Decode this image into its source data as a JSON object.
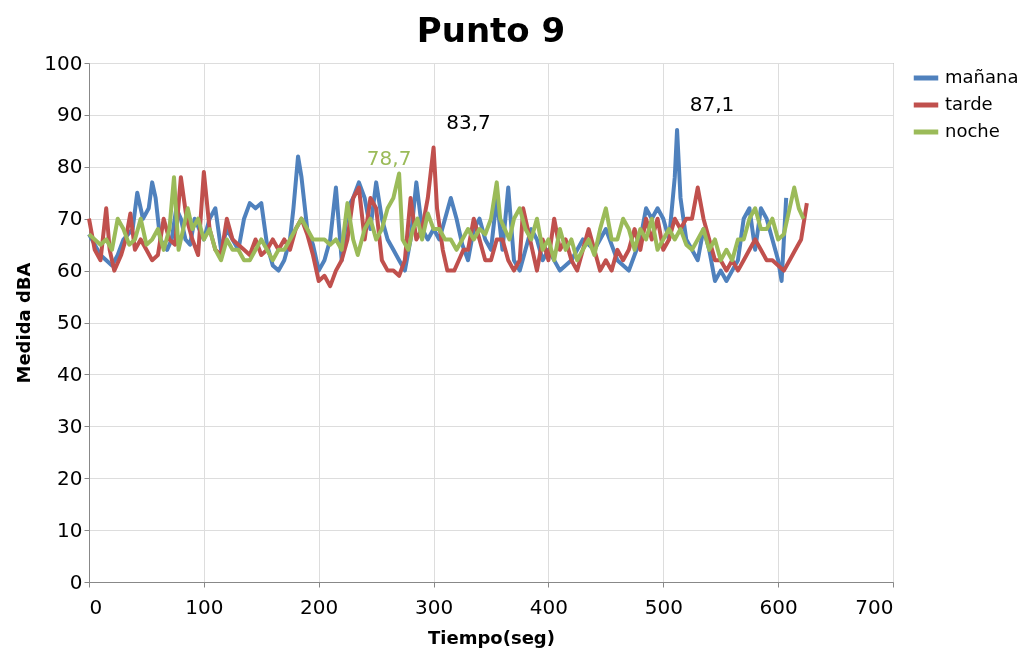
{
  "chart_data": {
    "type": "line",
    "title": "Punto 9",
    "xlabel": "Tiempo(seg)",
    "ylabel": "Medida dBA",
    "xlim": [
      0,
      700
    ],
    "xticks": [
      0,
      100,
      200,
      300,
      400,
      500,
      600,
      700
    ],
    "ylim": [
      0,
      100
    ],
    "yticks": [
      0,
      10,
      20,
      30,
      40,
      50,
      60,
      70,
      80,
      90,
      100
    ],
    "grid": true,
    "legend": "right",
    "marker": "none",
    "line_style": "solid",
    "annotations": [
      {
        "text": "78,7",
        "x": 270,
        "y": 78.7
      },
      {
        "text": "83,7",
        "x": 300,
        "y": 83.7
      },
      {
        "text": "87,1",
        "x": 512,
        "y": 87.1
      }
    ],
    "series": [
      {
        "name": "mañana",
        "color": "#4f81bd",
        "x": [
          0,
          5,
          10,
          15,
          20,
          25,
          30,
          38,
          42,
          47,
          52,
          55,
          58,
          62,
          68,
          72,
          76,
          80,
          84,
          88,
          92,
          96,
          100,
          105,
          110,
          115,
          120,
          125,
          130,
          135,
          140,
          145,
          150,
          155,
          160,
          165,
          170,
          175,
          178,
          182,
          185,
          190,
          195,
          200,
          205,
          210,
          215,
          220,
          225,
          230,
          235,
          240,
          245,
          250,
          255,
          260,
          265,
          270,
          275,
          280,
          285,
          290,
          295,
          300,
          305,
          310,
          315,
          320,
          325,
          330,
          335,
          340,
          345,
          350,
          355,
          360,
          365,
          370,
          375,
          380,
          385,
          390,
          395,
          400,
          410,
          420,
          430,
          440,
          450,
          460,
          470,
          480,
          485,
          490,
          495,
          500,
          505,
          510,
          512,
          515,
          520,
          525,
          530,
          535,
          540,
          545,
          550,
          555,
          560,
          565,
          570,
          575,
          580,
          585,
          590,
          595,
          600,
          603,
          607
        ],
        "values": [
          67,
          65,
          63,
          62,
          61,
          63,
          66,
          68,
          75,
          70,
          72,
          77,
          74,
          66,
          64,
          66,
          72,
          70,
          66,
          65,
          70,
          68,
          66,
          70,
          72,
          64,
          68,
          66,
          64,
          70,
          73,
          72,
          73,
          65,
          61,
          60,
          62,
          66,
          72,
          82,
          78,
          68,
          65,
          60,
          62,
          66,
          76,
          62,
          72,
          74,
          77,
          74,
          68,
          77,
          70,
          66,
          64,
          62,
          60,
          66,
          77,
          68,
          66,
          68,
          66,
          70,
          74,
          70,
          65,
          62,
          68,
          70,
          66,
          64,
          74,
          64,
          76,
          62,
          60,
          64,
          68,
          66,
          62,
          64,
          60,
          62,
          66,
          64,
          68,
          62,
          60,
          66,
          72,
          70,
          72,
          70,
          66,
          78,
          87.1,
          74,
          66,
          64,
          62,
          68,
          64,
          58,
          60,
          58,
          60,
          62,
          70,
          72,
          64,
          72,
          70,
          66,
          62,
          58,
          74
        ]
      },
      {
        "name": "tarde",
        "color": "#c0504d",
        "x": [
          0,
          5,
          10,
          15,
          18,
          22,
          28,
          32,
          36,
          40,
          45,
          50,
          55,
          60,
          65,
          70,
          75,
          80,
          85,
          90,
          95,
          100,
          105,
          110,
          115,
          120,
          125,
          130,
          135,
          140,
          145,
          150,
          155,
          160,
          165,
          170,
          175,
          180,
          185,
          190,
          195,
          200,
          205,
          210,
          215,
          220,
          225,
          230,
          235,
          240,
          245,
          250,
          255,
          260,
          265,
          270,
          275,
          280,
          285,
          290,
          295,
          300,
          303,
          308,
          312,
          318,
          322,
          326,
          330,
          335,
          340,
          345,
          350,
          355,
          360,
          365,
          370,
          375,
          378,
          382,
          386,
          390,
          395,
          400,
          405,
          410,
          415,
          420,
          425,
          430,
          435,
          440,
          445,
          450,
          455,
          460,
          465,
          470,
          475,
          480,
          485,
          490,
          495,
          500,
          505,
          510,
          515,
          520,
          525,
          530,
          535,
          540,
          545,
          550,
          555,
          560,
          565,
          570,
          575,
          580,
          585,
          590,
          595,
          600,
          605,
          610,
          615,
          620,
          625
        ],
        "values": [
          70,
          64,
          62,
          72,
          64,
          60,
          63,
          66,
          71,
          64,
          66,
          64,
          62,
          63,
          70,
          66,
          65,
          78,
          70,
          66,
          63,
          79,
          68,
          64,
          63,
          70,
          66,
          65,
          64,
          63,
          66,
          63,
          64,
          66,
          64,
          66,
          64,
          68,
          70,
          67,
          63,
          58,
          59,
          57,
          60,
          62,
          66,
          74,
          76,
          66,
          74,
          72,
          62,
          60,
          60,
          59,
          62,
          74,
          66,
          68,
          74,
          83.7,
          72,
          64,
          60,
          60,
          62,
          64,
          64,
          70,
          66,
          62,
          62,
          66,
          66,
          62,
          60,
          62,
          72,
          68,
          64,
          60,
          66,
          62,
          70,
          64,
          66,
          62,
          60,
          64,
          68,
          64,
          60,
          62,
          60,
          64,
          62,
          64,
          68,
          64,
          70,
          66,
          70,
          64,
          66,
          70,
          68,
          70,
          70,
          76,
          70,
          66,
          62,
          62,
          60,
          62,
          60,
          62,
          64,
          66,
          64,
          62,
          62,
          61,
          60,
          62,
          64,
          66,
          73
        ]
      },
      {
        "name": "noche",
        "color": "#9bbb59",
        "x": [
          0,
          5,
          10,
          15,
          20,
          25,
          30,
          35,
          40,
          45,
          50,
          55,
          60,
          65,
          70,
          74,
          78,
          82,
          86,
          90,
          95,
          100,
          105,
          110,
          115,
          120,
          125,
          130,
          135,
          140,
          145,
          150,
          155,
          160,
          165,
          170,
          175,
          180,
          185,
          190,
          195,
          200,
          205,
          210,
          215,
          220,
          225,
          230,
          234,
          240,
          245,
          250,
          255,
          260,
          265,
          270,
          273,
          278,
          282,
          286,
          290,
          295,
          300,
          305,
          310,
          315,
          320,
          325,
          330,
          335,
          340,
          345,
          350,
          355,
          358,
          362,
          366,
          370,
          375,
          380,
          385,
          390,
          395,
          400,
          405,
          410,
          415,
          420,
          425,
          430,
          435,
          440,
          445,
          450,
          455,
          460,
          465,
          470,
          475,
          480,
          485,
          490,
          495,
          500,
          505,
          510,
          515,
          520,
          525,
          530,
          535,
          540,
          545,
          550,
          555,
          560,
          565,
          570,
          575,
          580,
          585,
          590,
          595,
          600,
          605,
          610,
          614,
          618,
          622
        ],
        "values": [
          67,
          66,
          65,
          66,
          64,
          70,
          68,
          65,
          66,
          70,
          65,
          66,
          68,
          64,
          68,
          78,
          64,
          68,
          72,
          68,
          70,
          66,
          68,
          64,
          62,
          66,
          64,
          64,
          62,
          62,
          64,
          66,
          64,
          62,
          64,
          64,
          66,
          68,
          70,
          68,
          66,
          66,
          66,
          65,
          66,
          64,
          73,
          66,
          63,
          68,
          70,
          66,
          68,
          72,
          74,
          78.7,
          66,
          64,
          68,
          70,
          66,
          71,
          68,
          68,
          66,
          66,
          64,
          66,
          68,
          66,
          68,
          67,
          70,
          77,
          70,
          68,
          66,
          70,
          72,
          68,
          66,
          70,
          64,
          66,
          62,
          68,
          64,
          66,
          62,
          64,
          66,
          63,
          68,
          72,
          66,
          66,
          70,
          68,
          64,
          68,
          66,
          70,
          64,
          66,
          68,
          66,
          68,
          65,
          64,
          66,
          68,
          64,
          66,
          62,
          64,
          62,
          66,
          66,
          70,
          72,
          68,
          68,
          70,
          66,
          67,
          72,
          76,
          72,
          70
        ]
      }
    ]
  }
}
